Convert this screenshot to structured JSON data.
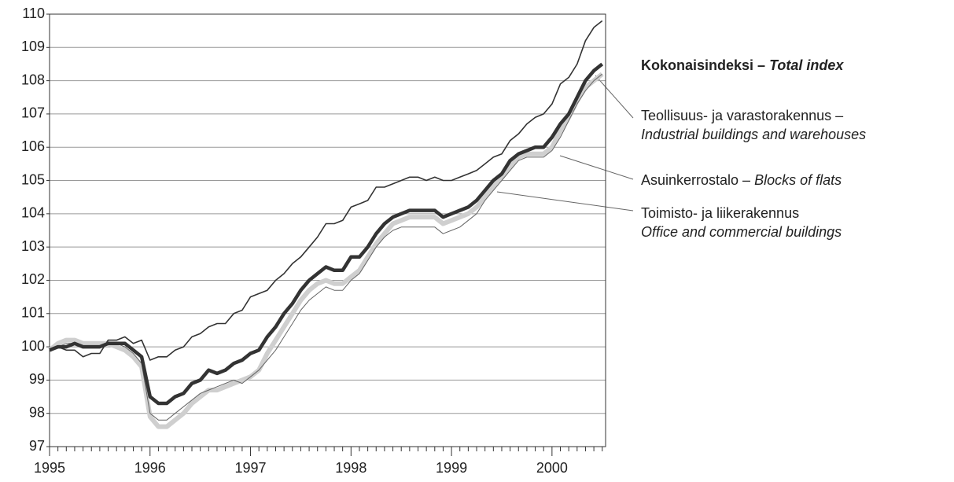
{
  "chart_data": {
    "type": "line",
    "categories": [
      "1995",
      null,
      null,
      null,
      null,
      null,
      null,
      null,
      null,
      null,
      null,
      null,
      "1996",
      null,
      null,
      null,
      null,
      null,
      null,
      null,
      null,
      null,
      null,
      null,
      "1997",
      null,
      null,
      null,
      null,
      null,
      null,
      null,
      null,
      null,
      null,
      null,
      "1998",
      null,
      null,
      null,
      null,
      null,
      null,
      null,
      null,
      null,
      null,
      null,
      "1999",
      null,
      null,
      null,
      null,
      null,
      null,
      null,
      null,
      null,
      null,
      null,
      "2000",
      null,
      null,
      null,
      null,
      null,
      null
    ],
    "ylim": [
      97,
      110
    ],
    "yticks": [
      97,
      98,
      99,
      100,
      101,
      102,
      103,
      104,
      105,
      106,
      107,
      108,
      109,
      110
    ],
    "grid": true,
    "series": [
      {
        "name": "Asuinkerrostalo –",
        "name_en": "Blocks of flats",
        "color": "#cfcfcf",
        "width": 6,
        "values": [
          99.9,
          100.1,
          100.2,
          100.2,
          100.1,
          100.1,
          100.1,
          100.1,
          100.0,
          99.9,
          99.7,
          99.4,
          97.9,
          97.6,
          97.6,
          97.8,
          98.0,
          98.3,
          98.5,
          98.7,
          98.7,
          98.8,
          98.9,
          99.0,
          99.1,
          99.3,
          99.8,
          100.2,
          100.6,
          101.0,
          101.4,
          101.7,
          101.9,
          102.0,
          101.9,
          101.9,
          102.1,
          102.3,
          102.7,
          103.1,
          103.4,
          103.7,
          103.8,
          103.9,
          103.9,
          103.9,
          103.9,
          103.7,
          103.8,
          103.9,
          104.0,
          104.2,
          104.5,
          104.8,
          105.1,
          105.4,
          105.7,
          105.8,
          105.8,
          105.8,
          106.0,
          106.5,
          106.9,
          107.4,
          107.8,
          108.0,
          108.2
        ]
      },
      {
        "name": "Toimisto- ja liikerakennus",
        "name_en": "Office and commercial buildings",
        "color": "#666666",
        "width": 1,
        "values": [
          99.9,
          100.0,
          100.1,
          100.1,
          100.0,
          100.0,
          100.0,
          100.1,
          100.1,
          100.0,
          99.8,
          99.5,
          98.0,
          97.8,
          97.8,
          98.0,
          98.2,
          98.4,
          98.6,
          98.7,
          98.8,
          98.9,
          99.0,
          98.9,
          99.1,
          99.3,
          99.6,
          99.9,
          100.3,
          100.7,
          101.1,
          101.4,
          101.6,
          101.8,
          101.7,
          101.7,
          102.0,
          102.2,
          102.6,
          103.0,
          103.3,
          103.5,
          103.6,
          103.6,
          103.6,
          103.6,
          103.6,
          103.4,
          103.5,
          103.6,
          103.8,
          104.0,
          104.4,
          104.7,
          105.0,
          105.3,
          105.6,
          105.7,
          105.7,
          105.7,
          105.9,
          106.3,
          106.8,
          107.3,
          107.7,
          108.0,
          108.2
        ]
      },
      {
        "name": "Teollisuus- ja varastorakennus –",
        "name_en": "Industrial buildings and warehouses",
        "color": "#333333",
        "width": 1.6,
        "values": [
          99.9,
          100.0,
          99.9,
          99.9,
          99.7,
          99.8,
          99.8,
          100.2,
          100.2,
          100.3,
          100.1,
          100.2,
          99.6,
          99.7,
          99.7,
          99.9,
          100.0,
          100.3,
          100.4,
          100.6,
          100.7,
          100.7,
          101.0,
          101.1,
          101.5,
          101.6,
          101.7,
          102.0,
          102.2,
          102.5,
          102.7,
          103.0,
          103.3,
          103.7,
          103.7,
          103.8,
          104.2,
          104.3,
          104.4,
          104.8,
          104.8,
          104.9,
          105.0,
          105.1,
          105.1,
          105.0,
          105.1,
          105.0,
          105.0,
          105.1,
          105.2,
          105.3,
          105.5,
          105.7,
          105.8,
          106.2,
          106.4,
          106.7,
          106.9,
          107.0,
          107.3,
          107.9,
          108.1,
          108.5,
          109.2,
          109.6,
          109.8
        ]
      },
      {
        "name": "Kokonaisindeksi –",
        "name_en": "Total index",
        "color": "#333333",
        "width": 4.5,
        "values": [
          99.9,
          100.0,
          100.0,
          100.1,
          100.0,
          100.0,
          100.0,
          100.1,
          100.1,
          100.1,
          99.9,
          99.7,
          98.5,
          98.3,
          98.3,
          98.5,
          98.6,
          98.9,
          99.0,
          99.3,
          99.2,
          99.3,
          99.5,
          99.6,
          99.8,
          99.9,
          100.3,
          100.6,
          101.0,
          101.3,
          101.7,
          102.0,
          102.2,
          102.4,
          102.3,
          102.3,
          102.7,
          102.7,
          103.0,
          103.4,
          103.7,
          103.9,
          104.0,
          104.1,
          104.1,
          104.1,
          104.1,
          103.9,
          104.0,
          104.1,
          104.2,
          104.4,
          104.7,
          105.0,
          105.2,
          105.6,
          105.8,
          105.9,
          106.0,
          106.0,
          106.3,
          106.7,
          107.0,
          107.5,
          108.0,
          108.3,
          108.5
        ]
      }
    ]
  }
}
